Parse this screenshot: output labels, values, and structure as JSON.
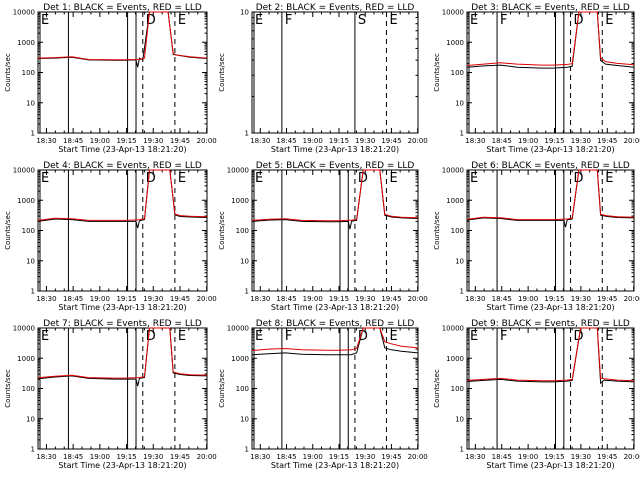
{
  "chart_data": [
    {
      "type": "line",
      "title": "Det 1: BLACK = Events, RED = LLD",
      "ylabel": "Counts/sec",
      "xlabel": "Start Time (23-Apr-13 18:21:20)",
      "empty": false,
      "markers": [
        "E",
        "D",
        "E"
      ],
      "series": [
        {
          "name": "Events",
          "points": [
            [
              0,
              290
            ],
            [
              0.1,
              300
            ],
            [
              0.2,
              320
            ],
            [
              0.3,
              260
            ],
            [
              0.45,
              255
            ],
            [
              0.52,
              255
            ],
            [
              0.58,
              260
            ],
            [
              0.59,
              150
            ],
            [
              0.6,
              300
            ],
            [
              0.62,
              260
            ],
            [
              0.66,
              12000
            ],
            [
              0.77,
              12000
            ],
            [
              0.8,
              400
            ],
            [
              0.82,
              380
            ],
            [
              0.9,
              320
            ],
            [
              1,
              290
            ]
          ]
        },
        {
          "name": "LLD",
          "points": [
            [
              0,
              300
            ],
            [
              0.1,
              310
            ],
            [
              0.2,
              330
            ],
            [
              0.3,
              270
            ],
            [
              0.45,
              265
            ],
            [
              0.52,
              265
            ],
            [
              0.6,
              270
            ],
            [
              0.63,
              300
            ],
            [
              0.66,
              12000
            ],
            [
              0.77,
              12000
            ],
            [
              0.8,
              420
            ],
            [
              0.82,
              380
            ],
            [
              0.9,
              330
            ],
            [
              1,
              300
            ]
          ]
        }
      ]
    },
    {
      "type": "line",
      "title": "Det 2: BLACK = Events, RED = LLD",
      "ylabel": "Counts/sec",
      "xlabel": "Start Time (23-Apr-13 18:21:20)",
      "empty": true,
      "markers": [
        "E",
        "F",
        "S",
        "E"
      ],
      "series": []
    },
    {
      "type": "line",
      "title": "Det 3: BLACK = Events, RED = LLD",
      "ylabel": "Counts/sec",
      "xlabel": "Start Time (23-Apr-13 18:21:20)",
      "empty": false,
      "markers": [
        "E",
        "F",
        "D",
        "E"
      ],
      "series": [
        {
          "name": "Events",
          "points": [
            [
              0,
              150
            ],
            [
              0.1,
              165
            ],
            [
              0.2,
              175
            ],
            [
              0.3,
              150
            ],
            [
              0.45,
              140
            ],
            [
              0.52,
              140
            ],
            [
              0.6,
              150
            ],
            [
              0.63,
              160
            ],
            [
              0.67,
              12000
            ],
            [
              0.78,
              12000
            ],
            [
              0.8,
              250
            ],
            [
              0.83,
              190
            ],
            [
              0.9,
              170
            ],
            [
              1,
              150
            ]
          ]
        },
        {
          "name": "LLD",
          "points": [
            [
              0,
              170
            ],
            [
              0.1,
              190
            ],
            [
              0.2,
              210
            ],
            [
              0.3,
              190
            ],
            [
              0.45,
              175
            ],
            [
              0.52,
              175
            ],
            [
              0.6,
              185
            ],
            [
              0.63,
              195
            ],
            [
              0.67,
              12000
            ],
            [
              0.78,
              12000
            ],
            [
              0.8,
              300
            ],
            [
              0.83,
              230
            ],
            [
              0.9,
              200
            ],
            [
              1,
              180
            ]
          ]
        }
      ]
    },
    {
      "type": "line",
      "title": "Det 4: BLACK = Events, RED = LLD",
      "ylabel": "Counts/sec",
      "xlabel": "Start Time (23-Apr-13 18:21:20)",
      "empty": false,
      "markers": [
        "E",
        "D",
        "E"
      ],
      "series": [
        {
          "name": "Events",
          "points": [
            [
              0,
              200
            ],
            [
              0.1,
              240
            ],
            [
              0.2,
              230
            ],
            [
              0.3,
              200
            ],
            [
              0.45,
              200
            ],
            [
              0.52,
              200
            ],
            [
              0.58,
              200
            ],
            [
              0.59,
              120
            ],
            [
              0.6,
              210
            ],
            [
              0.63,
              230
            ],
            [
              0.66,
              12000
            ],
            [
              0.78,
              12000
            ],
            [
              0.81,
              330
            ],
            [
              0.84,
              290
            ],
            [
              0.9,
              280
            ],
            [
              1,
              270
            ]
          ]
        },
        {
          "name": "LLD",
          "points": [
            [
              0,
              215
            ],
            [
              0.1,
              255
            ],
            [
              0.2,
              245
            ],
            [
              0.3,
              215
            ],
            [
              0.45,
              215
            ],
            [
              0.52,
              215
            ],
            [
              0.6,
              225
            ],
            [
              0.63,
              245
            ],
            [
              0.66,
              12000
            ],
            [
              0.78,
              12000
            ],
            [
              0.81,
              350
            ],
            [
              0.84,
              310
            ],
            [
              0.9,
              295
            ],
            [
              1,
              285
            ]
          ]
        }
      ]
    },
    {
      "type": "line",
      "title": "Det 5: BLACK = Events, RED = LLD",
      "ylabel": "Counts/sec",
      "xlabel": "Start Time (23-Apr-13 18:21:20)",
      "empty": false,
      "markers": [
        "E",
        "D",
        "E"
      ],
      "series": [
        {
          "name": "Events",
          "points": [
            [
              0,
              200
            ],
            [
              0.1,
              220
            ],
            [
              0.2,
              230
            ],
            [
              0.3,
              200
            ],
            [
              0.45,
              195
            ],
            [
              0.52,
              195
            ],
            [
              0.58,
              200
            ],
            [
              0.59,
              110
            ],
            [
              0.6,
              205
            ],
            [
              0.63,
              215
            ],
            [
              0.67,
              12000
            ],
            [
              0.77,
              12000
            ],
            [
              0.8,
              320
            ],
            [
              0.84,
              280
            ],
            [
              0.9,
              260
            ],
            [
              1,
              250
            ]
          ]
        },
        {
          "name": "LLD",
          "points": [
            [
              0,
              215
            ],
            [
              0.1,
              235
            ],
            [
              0.2,
              245
            ],
            [
              0.3,
              215
            ],
            [
              0.45,
              210
            ],
            [
              0.52,
              210
            ],
            [
              0.6,
              220
            ],
            [
              0.63,
              230
            ],
            [
              0.67,
              12000
            ],
            [
              0.77,
              12000
            ],
            [
              0.8,
              340
            ],
            [
              0.84,
              295
            ],
            [
              0.9,
              275
            ],
            [
              1,
              265
            ]
          ]
        }
      ]
    },
    {
      "type": "line",
      "title": "Det 6: BLACK = Events, RED = LLD",
      "ylabel": "Counts/sec",
      "xlabel": "Start Time (23-Apr-13 18:21:20)",
      "empty": false,
      "markers": [
        "E",
        "D",
        "E"
      ],
      "series": [
        {
          "name": "Events",
          "points": [
            [
              0,
              220
            ],
            [
              0.1,
              260
            ],
            [
              0.2,
              250
            ],
            [
              0.3,
              215
            ],
            [
              0.45,
              215
            ],
            [
              0.52,
              215
            ],
            [
              0.58,
              215
            ],
            [
              0.59,
              130
            ],
            [
              0.6,
              225
            ],
            [
              0.63,
              240
            ],
            [
              0.67,
              12000
            ],
            [
              0.78,
              12000
            ],
            [
              0.8,
              320
            ],
            [
              0.84,
              290
            ],
            [
              0.9,
              270
            ],
            [
              1,
              260
            ]
          ]
        },
        {
          "name": "LLD",
          "points": [
            [
              0,
              235
            ],
            [
              0.1,
              275
            ],
            [
              0.2,
              265
            ],
            [
              0.3,
              230
            ],
            [
              0.45,
              230
            ],
            [
              0.52,
              230
            ],
            [
              0.6,
              240
            ],
            [
              0.63,
              255
            ],
            [
              0.67,
              12000
            ],
            [
              0.78,
              12000
            ],
            [
              0.8,
              340
            ],
            [
              0.84,
              305
            ],
            [
              0.9,
              285
            ],
            [
              1,
              275
            ]
          ]
        }
      ]
    },
    {
      "type": "line",
      "title": "Det 7: BLACK = Events, RED = LLD",
      "ylabel": "Counts/sec",
      "xlabel": "Start Time (23-Apr-13 18:21:20)",
      "empty": false,
      "markers": [
        "E",
        "D",
        "E"
      ],
      "series": [
        {
          "name": "Events",
          "points": [
            [
              0,
              210
            ],
            [
              0.1,
              240
            ],
            [
              0.2,
              260
            ],
            [
              0.3,
              215
            ],
            [
              0.45,
              205
            ],
            [
              0.52,
              205
            ],
            [
              0.58,
              205
            ],
            [
              0.59,
              120
            ],
            [
              0.6,
              215
            ],
            [
              0.63,
              230
            ],
            [
              0.66,
              12000
            ],
            [
              0.78,
              12000
            ],
            [
              0.8,
              330
            ],
            [
              0.84,
              290
            ],
            [
              0.9,
              270
            ],
            [
              1,
              260
            ]
          ]
        },
        {
          "name": "LLD",
          "points": [
            [
              0,
              225
            ],
            [
              0.1,
              255
            ],
            [
              0.2,
              275
            ],
            [
              0.3,
              230
            ],
            [
              0.45,
              220
            ],
            [
              0.52,
              220
            ],
            [
              0.6,
              230
            ],
            [
              0.63,
              245
            ],
            [
              0.66,
              12000
            ],
            [
              0.78,
              12000
            ],
            [
              0.8,
              350
            ],
            [
              0.84,
              305
            ],
            [
              0.9,
              285
            ],
            [
              1,
              275
            ]
          ]
        }
      ]
    },
    {
      "type": "line",
      "title": "Det 8: BLACK = Events, RED = LLD",
      "ylabel": "Counts/sec",
      "xlabel": "Start Time (23-Apr-13 18:21:20)",
      "empty": false,
      "markers": [
        "E",
        "F",
        "D",
        "E"
      ],
      "series": [
        {
          "name": "Events",
          "points": [
            [
              0,
              1300
            ],
            [
              0.1,
              1400
            ],
            [
              0.2,
              1500
            ],
            [
              0.3,
              1350
            ],
            [
              0.45,
              1300
            ],
            [
              0.52,
              1300
            ],
            [
              0.58,
              1300
            ],
            [
              0.6,
              1320
            ],
            [
              0.63,
              1500
            ],
            [
              0.67,
              12000
            ],
            [
              0.77,
              12000
            ],
            [
              0.8,
              2200
            ],
            [
              0.84,
              1900
            ],
            [
              0.9,
              1700
            ],
            [
              1,
              1500
            ]
          ]
        },
        {
          "name": "LLD",
          "points": [
            [
              0,
              1800
            ],
            [
              0.1,
              2000
            ],
            [
              0.2,
              2100
            ],
            [
              0.3,
              1900
            ],
            [
              0.45,
              1850
            ],
            [
              0.52,
              1850
            ],
            [
              0.6,
              1900
            ],
            [
              0.63,
              2100
            ],
            [
              0.67,
              12000
            ],
            [
              0.77,
              12000
            ],
            [
              0.8,
              3500
            ],
            [
              0.84,
              3000
            ],
            [
              0.9,
              2500
            ],
            [
              1,
              2200
            ]
          ]
        }
      ]
    },
    {
      "type": "line",
      "title": "Det 9: BLACK = Events, RED = LLD",
      "ylabel": "Counts/sec",
      "xlabel": "Start Time (23-Apr-13 18:21:20)",
      "empty": false,
      "markers": [
        "E",
        "F",
        "D",
        "E"
      ],
      "series": [
        {
          "name": "Events",
          "points": [
            [
              0,
              170
            ],
            [
              0.1,
              185
            ],
            [
              0.2,
              200
            ],
            [
              0.3,
              175
            ],
            [
              0.45,
              165
            ],
            [
              0.52,
              165
            ],
            [
              0.6,
              175
            ],
            [
              0.63,
              185
            ],
            [
              0.68,
              12000
            ],
            [
              0.78,
              12000
            ],
            [
              0.8,
              150
            ],
            [
              0.82,
              190
            ],
            [
              0.9,
              175
            ],
            [
              1,
              165
            ]
          ]
        },
        {
          "name": "LLD",
          "points": [
            [
              0,
              185
            ],
            [
              0.1,
              200
            ],
            [
              0.2,
              215
            ],
            [
              0.3,
              190
            ],
            [
              0.45,
              180
            ],
            [
              0.52,
              180
            ],
            [
              0.6,
              190
            ],
            [
              0.63,
              200
            ],
            [
              0.68,
              12000
            ],
            [
              0.78,
              12000
            ],
            [
              0.8,
              220
            ],
            [
              0.82,
              210
            ],
            [
              0.9,
              190
            ],
            [
              1,
              180
            ]
          ]
        }
      ]
    }
  ],
  "x_ticks": [
    "18:30",
    "18:45",
    "19:00",
    "19:15",
    "19:30",
    "19:45",
    "20:00"
  ],
  "y_ticks_log": [
    "1",
    "10",
    "100",
    "1000",
    "10000"
  ],
  "y_ticks_det2": [
    "1",
    "10"
  ],
  "colors": {
    "events": "#000000",
    "lld": "#e00000"
  }
}
